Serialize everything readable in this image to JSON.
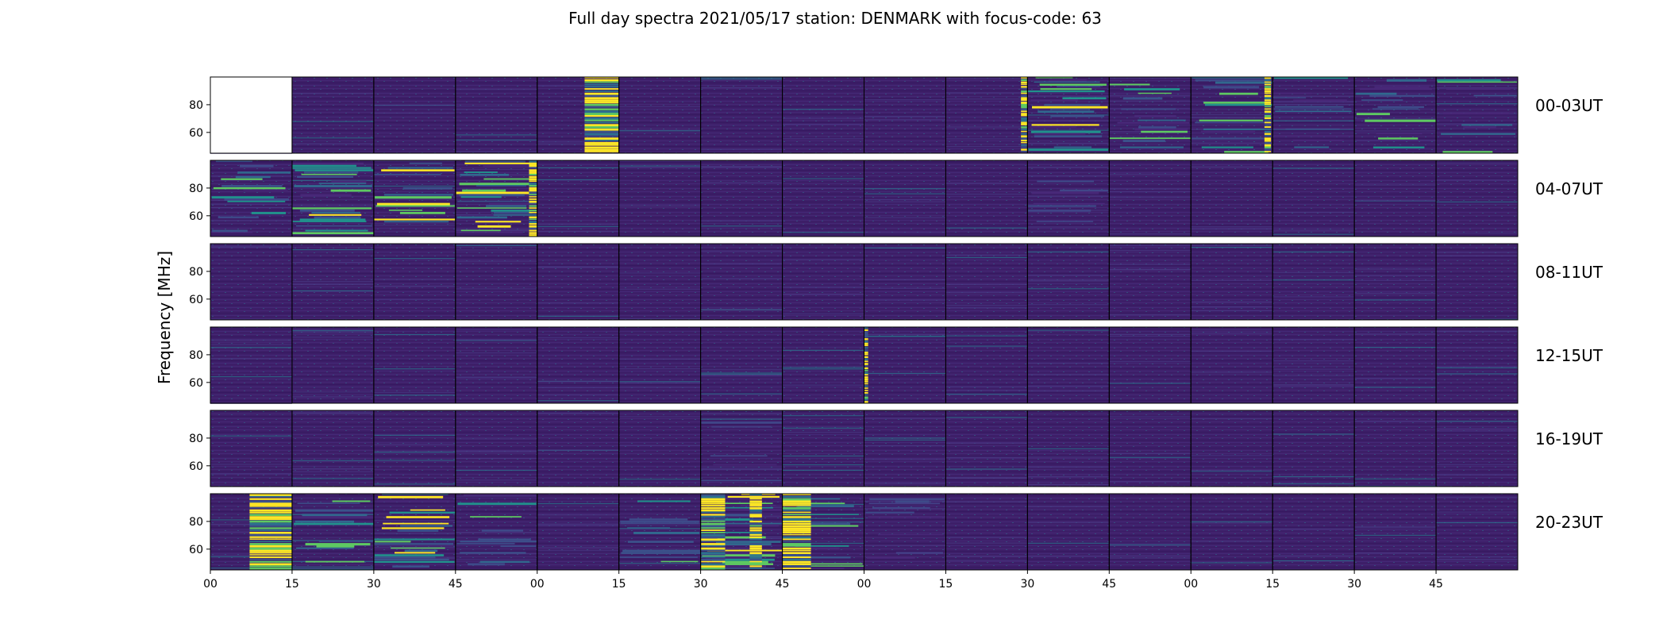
{
  "figure": {
    "title": "Full day spectra 2021/05/17 station: DENMARK with focus-code: 63",
    "ylabel": "Frequency [MHz]"
  },
  "colors": {
    "background_low": "#3f1a65",
    "background_mid": "#452c77",
    "viridis_low": "#440154",
    "viridis_mid": "#21918c",
    "viridis_green": "#5ec962",
    "viridis_high": "#fde725",
    "frame": "#000000",
    "empty_panel": "#ffffff"
  },
  "chart_data": {
    "type": "heatmap",
    "colormap": "viridis",
    "description_of_layout": "6 rows of 4 hours, each row split into 16 fifteen-minute spectrogram panels",
    "ylim": [
      45,
      100
    ],
    "y_ticks": [
      "80",
      "60"
    ],
    "x_ticks": [
      "00",
      "15",
      "30",
      "45",
      "00",
      "15",
      "30",
      "45",
      "00",
      "15",
      "30",
      "45",
      "00",
      "15",
      "30",
      "45"
    ],
    "rows": [
      {
        "label": "00-03UT",
        "empty_panels": [
          0
        ],
        "bursts": [
          {
            "panel": 4,
            "x0": 0.58,
            "x1": 1.0,
            "intensity": "high"
          },
          {
            "panel": 9,
            "x0": 0.92,
            "x1": 1.0,
            "intensity": "high"
          },
          {
            "panel": 10,
            "x0": 0.0,
            "x1": 1.0,
            "intensity": "mid"
          },
          {
            "panel": 11,
            "x0": 0.0,
            "x1": 1.0,
            "intensity": "low"
          },
          {
            "panel": 12,
            "x0": 0.0,
            "x1": 1.0,
            "intensity": "low"
          },
          {
            "panel": 12,
            "x0": 0.9,
            "x1": 0.98,
            "intensity": "high"
          },
          {
            "panel": 13,
            "x0": 0.0,
            "x1": 1.0,
            "intensity": "low"
          },
          {
            "panel": 14,
            "x0": 0.0,
            "x1": 1.0,
            "intensity": "low"
          },
          {
            "panel": 15,
            "x0": 0.0,
            "x1": 1.0,
            "intensity": "low"
          }
        ]
      },
      {
        "label": "04-07UT",
        "empty_panels": [],
        "bursts": [
          {
            "panel": 0,
            "x0": 0.0,
            "x1": 1.0,
            "intensity": "low"
          },
          {
            "panel": 1,
            "x0": 0.0,
            "x1": 1.0,
            "intensity": "mid"
          },
          {
            "panel": 2,
            "x0": 0.0,
            "x1": 1.0,
            "intensity": "mid"
          },
          {
            "panel": 3,
            "x0": 0.0,
            "x1": 1.0,
            "intensity": "mid"
          },
          {
            "panel": 3,
            "x0": 0.9,
            "x1": 1.0,
            "intensity": "high"
          },
          {
            "panel": 10,
            "x0": 0.0,
            "x1": 1.0,
            "intensity": "faint"
          }
        ]
      },
      {
        "label": "08-11UT",
        "empty_panels": [],
        "bursts": []
      },
      {
        "label": "12-15UT",
        "empty_panels": [],
        "bursts": [
          {
            "panel": 8,
            "x0": 0.0,
            "x1": 0.05,
            "intensity": "high"
          }
        ]
      },
      {
        "label": "16-19UT",
        "empty_panels": [],
        "bursts": [
          {
            "panel": 6,
            "x0": 0.0,
            "x1": 1.0,
            "intensity": "faint"
          }
        ]
      },
      {
        "label": "20-23UT",
        "empty_panels": [],
        "bursts": [
          {
            "panel": 0,
            "x0": 0.48,
            "x1": 1.0,
            "intensity": "high"
          },
          {
            "panel": 1,
            "x0": 0.0,
            "x1": 1.0,
            "intensity": "low"
          },
          {
            "panel": 2,
            "x0": 0.0,
            "x1": 1.0,
            "intensity": "mid"
          },
          {
            "panel": 3,
            "x0": 0.0,
            "x1": 1.0,
            "intensity": "low"
          },
          {
            "panel": 5,
            "x0": 0.0,
            "x1": 1.0,
            "intensity": "low"
          },
          {
            "panel": 6,
            "x0": 0.0,
            "x1": 1.0,
            "intensity": "mid"
          },
          {
            "panel": 7,
            "x0": 0.0,
            "x1": 1.0,
            "intensity": "low"
          },
          {
            "panel": 8,
            "x0": 0.0,
            "x1": 1.0,
            "intensity": "faint"
          },
          {
            "panel": 6,
            "x0": 0.0,
            "x1": 0.3,
            "intensity": "high"
          },
          {
            "panel": 6,
            "x0": 0.6,
            "x1": 0.75,
            "intensity": "high"
          },
          {
            "panel": 7,
            "x0": 0.0,
            "x1": 0.35,
            "intensity": "high"
          }
        ]
      }
    ]
  }
}
